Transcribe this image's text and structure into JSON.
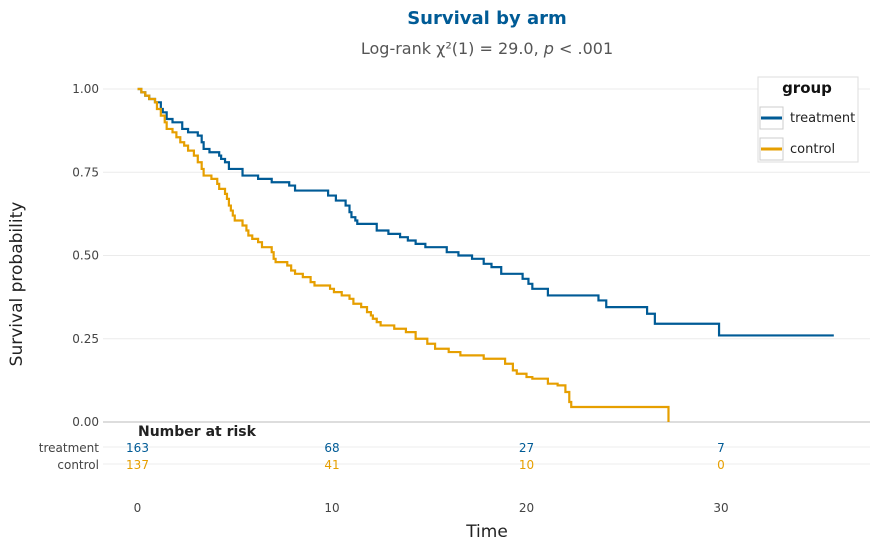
{
  "chart_data": {
    "type": "line",
    "title": "Survival by arm",
    "subtitle_prefix": "Log-rank χ²(1) = 29.0, ",
    "subtitle_p": "p",
    "subtitle_suffix": " < .001",
    "xlabel": "Time",
    "ylabel": "Survival probability",
    "xlim": [
      0,
      37
    ],
    "ylim": [
      0,
      1
    ],
    "x_ticks": [
      0,
      10,
      20,
      30
    ],
    "y_ticks": [
      0,
      0.25,
      0.5,
      0.75,
      1.0
    ],
    "y_tick_labels": [
      "0.00",
      "0.25",
      "0.50",
      "0.75",
      "1.00"
    ],
    "grid": true,
    "legend": {
      "title": "group",
      "position": "top-right",
      "entries": [
        "treatment",
        "control"
      ]
    },
    "series": [
      {
        "name": "treatment",
        "color": "#005b96",
        "steps": [
          [
            0,
            1.0
          ],
          [
            0.2,
            0.99
          ],
          [
            0.4,
            0.98
          ],
          [
            0.6,
            0.97
          ],
          [
            0.9,
            0.96
          ],
          [
            1.2,
            0.94
          ],
          [
            1.3,
            0.93
          ],
          [
            1.5,
            0.91
          ],
          [
            1.8,
            0.9
          ],
          [
            2.3,
            0.88
          ],
          [
            2.6,
            0.87
          ],
          [
            3.1,
            0.86
          ],
          [
            3.3,
            0.84
          ],
          [
            3.4,
            0.82
          ],
          [
            3.7,
            0.81
          ],
          [
            4.2,
            0.8
          ],
          [
            4.3,
            0.79
          ],
          [
            4.5,
            0.78
          ],
          [
            4.7,
            0.76
          ],
          [
            5.4,
            0.74
          ],
          [
            6.2,
            0.73
          ],
          [
            6.9,
            0.72
          ],
          [
            7.8,
            0.71
          ],
          [
            8.1,
            0.695
          ],
          [
            9.8,
            0.68
          ],
          [
            10.2,
            0.665
          ],
          [
            10.7,
            0.65
          ],
          [
            10.9,
            0.63
          ],
          [
            11.0,
            0.615
          ],
          [
            11.2,
            0.605
          ],
          [
            11.3,
            0.595
          ],
          [
            12.3,
            0.575
          ],
          [
            12.9,
            0.565
          ],
          [
            13.5,
            0.555
          ],
          [
            13.9,
            0.545
          ],
          [
            14.3,
            0.535
          ],
          [
            14.8,
            0.525
          ],
          [
            15.9,
            0.51
          ],
          [
            16.5,
            0.5
          ],
          [
            17.2,
            0.49
          ],
          [
            17.8,
            0.475
          ],
          [
            18.2,
            0.465
          ],
          [
            18.7,
            0.445
          ],
          [
            19.8,
            0.43
          ],
          [
            20.1,
            0.415
          ],
          [
            20.3,
            0.4
          ],
          [
            21.1,
            0.38
          ],
          [
            23.7,
            0.365
          ],
          [
            24.1,
            0.345
          ],
          [
            26.2,
            0.325
          ],
          [
            26.6,
            0.295
          ],
          [
            29.9,
            0.26
          ],
          [
            35.8,
            0.26
          ]
        ]
      },
      {
        "name": "control",
        "color": "#e69f00",
        "steps": [
          [
            0,
            1.0
          ],
          [
            0.2,
            0.99
          ],
          [
            0.4,
            0.98
          ],
          [
            0.6,
            0.97
          ],
          [
            0.9,
            0.96
          ],
          [
            1.0,
            0.94
          ],
          [
            1.2,
            0.92
          ],
          [
            1.4,
            0.9
          ],
          [
            1.5,
            0.88
          ],
          [
            1.8,
            0.87
          ],
          [
            2.0,
            0.855
          ],
          [
            2.2,
            0.84
          ],
          [
            2.4,
            0.83
          ],
          [
            2.6,
            0.815
          ],
          [
            2.9,
            0.8
          ],
          [
            3.1,
            0.78
          ],
          [
            3.3,
            0.76
          ],
          [
            3.4,
            0.74
          ],
          [
            3.8,
            0.73
          ],
          [
            4.1,
            0.715
          ],
          [
            4.2,
            0.7
          ],
          [
            4.5,
            0.685
          ],
          [
            4.6,
            0.67
          ],
          [
            4.7,
            0.65
          ],
          [
            4.8,
            0.635
          ],
          [
            4.9,
            0.62
          ],
          [
            5.0,
            0.605
          ],
          [
            5.4,
            0.59
          ],
          [
            5.6,
            0.575
          ],
          [
            5.7,
            0.56
          ],
          [
            5.9,
            0.55
          ],
          [
            6.2,
            0.54
          ],
          [
            6.4,
            0.525
          ],
          [
            6.9,
            0.51
          ],
          [
            7.0,
            0.49
          ],
          [
            7.1,
            0.48
          ],
          [
            7.7,
            0.47
          ],
          [
            7.9,
            0.455
          ],
          [
            8.1,
            0.445
          ],
          [
            8.5,
            0.435
          ],
          [
            8.9,
            0.42
          ],
          [
            9.1,
            0.41
          ],
          [
            9.9,
            0.4
          ],
          [
            10.1,
            0.39
          ],
          [
            10.5,
            0.38
          ],
          [
            10.9,
            0.37
          ],
          [
            11.1,
            0.355
          ],
          [
            11.5,
            0.345
          ],
          [
            11.8,
            0.33
          ],
          [
            12.0,
            0.32
          ],
          [
            12.1,
            0.31
          ],
          [
            12.3,
            0.3
          ],
          [
            12.5,
            0.29
          ],
          [
            13.2,
            0.28
          ],
          [
            13.8,
            0.27
          ],
          [
            14.3,
            0.25
          ],
          [
            14.9,
            0.235
          ],
          [
            15.3,
            0.22
          ],
          [
            16.0,
            0.21
          ],
          [
            16.6,
            0.2
          ],
          [
            17.8,
            0.19
          ],
          [
            18.9,
            0.175
          ],
          [
            19.3,
            0.155
          ],
          [
            19.5,
            0.145
          ],
          [
            20.0,
            0.135
          ],
          [
            20.3,
            0.13
          ],
          [
            21.1,
            0.115
          ],
          [
            21.6,
            0.11
          ],
          [
            22.0,
            0.09
          ],
          [
            22.2,
            0.06
          ],
          [
            22.3,
            0.045
          ],
          [
            27.3,
            0.0
          ]
        ]
      }
    ],
    "risk_table": {
      "title": "Number at risk",
      "times": [
        0,
        10,
        20,
        30
      ],
      "rows": [
        {
          "name": "treatment",
          "color": "#005b96",
          "counts": [
            "163",
            "68",
            "27",
            "7"
          ]
        },
        {
          "name": "control",
          "color": "#e69f00",
          "counts": [
            "137",
            "41",
            "10",
            "0"
          ]
        }
      ]
    }
  }
}
